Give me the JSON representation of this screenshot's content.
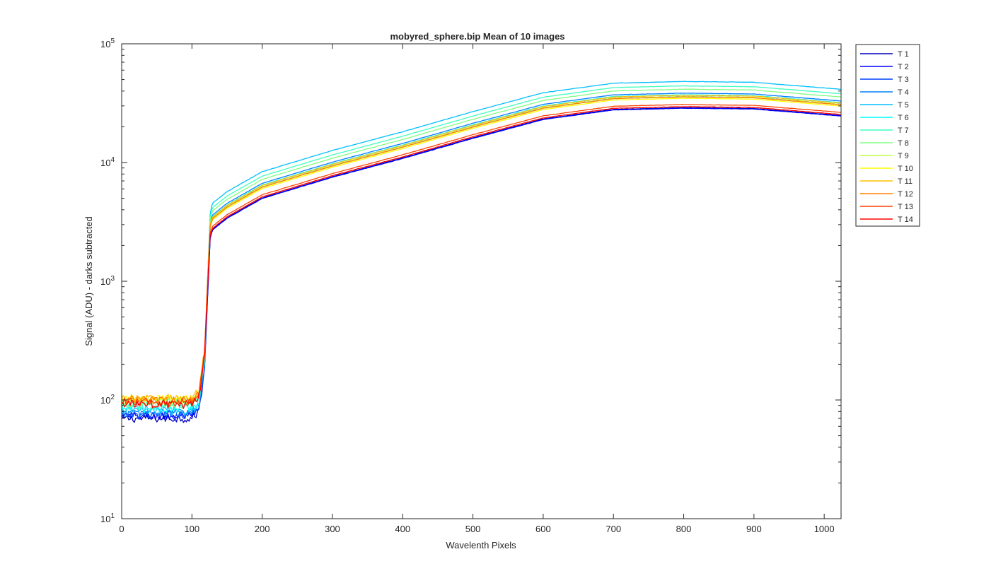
{
  "figure_background": "#ffffff",
  "chart_data": {
    "type": "line",
    "title": "mobyred_sphere.bip  Mean of 10 images",
    "xlabel": "Wavelenth Pixels",
    "ylabel": "Signal (ADU) - darks subtracted",
    "xlim": [
      0,
      1024
    ],
    "ylim": [
      10,
      100000
    ],
    "yscale": "log",
    "xticks": [
      0,
      100,
      200,
      300,
      400,
      500,
      600,
      700,
      800,
      900,
      1000
    ],
    "xtick_labels": [
      "0",
      "100",
      "200",
      "300",
      "400",
      "500",
      "600",
      "700",
      "800",
      "900",
      "1000"
    ],
    "yticks": [
      10,
      100,
      1000,
      10000,
      100000
    ],
    "ytick_labels": [
      {
        "base": "10",
        "exp": "1"
      },
      {
        "base": "10",
        "exp": "2"
      },
      {
        "base": "10",
        "exp": "3"
      },
      {
        "base": "10",
        "exp": "4"
      },
      {
        "base": "10",
        "exp": "5"
      }
    ],
    "grid": false,
    "legend_position": "outside-right",
    "profile": {
      "x": [
        0,
        100,
        110,
        118,
        122,
        126,
        130,
        150,
        200,
        300,
        400,
        500,
        600,
        700,
        800,
        900,
        1024
      ],
      "shape": [
        1,
        1,
        1.15,
        2.6,
        8.5,
        25.5,
        29,
        36,
        53,
        80,
        115,
        170,
        245,
        295,
        305,
        300,
        262
      ]
    },
    "series": [
      {
        "name": "T 1",
        "color": "#0000bf",
        "noise_level": 70,
        "scale": 95
      },
      {
        "name": "T 2",
        "color": "#0000ff",
        "noise_level": 73,
        "scale": 94
      },
      {
        "name": "T 3",
        "color": "#0040ff",
        "noise_level": 75,
        "scale": 118
      },
      {
        "name": "T 4",
        "color": "#0080ff",
        "noise_level": 78,
        "scale": 126
      },
      {
        "name": "T 5",
        "color": "#00bfff",
        "noise_level": 82,
        "scale": 158
      },
      {
        "name": "T 6",
        "color": "#00ffff",
        "noise_level": 85,
        "scale": 122
      },
      {
        "name": "T 7",
        "color": "#40ffbf",
        "noise_level": 90,
        "scale": 145
      },
      {
        "name": "T 8",
        "color": "#80ff80",
        "noise_level": 94,
        "scale": 136
      },
      {
        "name": "T 9",
        "color": "#bfff40",
        "noise_level": 98,
        "scale": 118
      },
      {
        "name": "T 10",
        "color": "#ffff00",
        "noise_level": 102,
        "scale": 114
      },
      {
        "name": "T 11",
        "color": "#ffbf00",
        "noise_level": 104,
        "scale": 121
      },
      {
        "name": "T 12",
        "color": "#ff8000",
        "noise_level": 100,
        "scale": 117
      },
      {
        "name": "T 13",
        "color": "#ff4000",
        "noise_level": 96,
        "scale": 101
      },
      {
        "name": "T 14",
        "color": "#ff0000",
        "noise_level": 92,
        "scale": 97
      }
    ]
  }
}
